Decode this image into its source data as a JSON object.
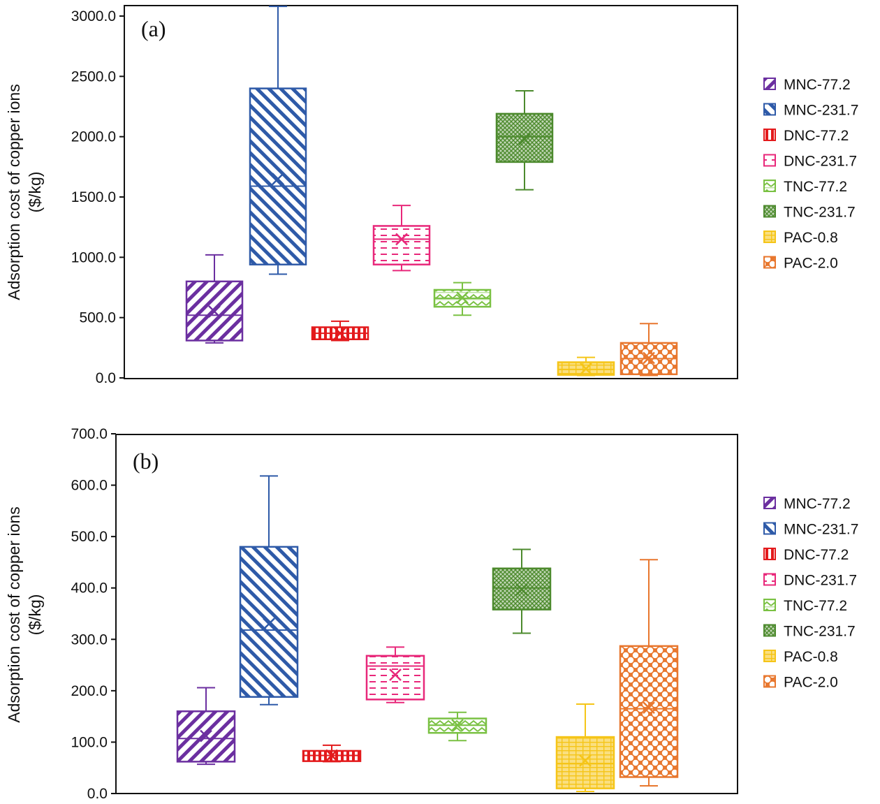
{
  "chart_data": [
    {
      "type": "box",
      "panel_label": "(a)",
      "ylabel_line1": "Adsorption cost of copper ions",
      "ylabel_line2": "($/kg)",
      "ylim": [
        0,
        3000
      ],
      "ytick_values": [
        0,
        500,
        1000,
        1500,
        2000,
        2500,
        3000
      ],
      "ytick_labels": [
        "0.0",
        "500.0",
        "1000.0",
        "1500.0",
        "2000.0",
        "2500.0",
        "3000.0"
      ],
      "legend_position": "right",
      "series": [
        {
          "name": "MNC-77.2",
          "color": "#6b2fa0",
          "pattern": "diag-right",
          "min": 290,
          "q1": 310,
          "median": 520,
          "q3": 800,
          "max": 1020,
          "mean": 550
        },
        {
          "name": "MNC-231.7",
          "color": "#2e5aa8",
          "pattern": "diag-left",
          "min": 860,
          "q1": 940,
          "median": 1590,
          "q3": 2400,
          "max": 3080,
          "mean": 1650
        },
        {
          "name": "DNC-77.2",
          "color": "#e31a1c",
          "pattern": "vertical",
          "min": 310,
          "q1": 320,
          "median": 370,
          "q3": 420,
          "max": 470,
          "mean": 370
        },
        {
          "name": "DNC-231.7",
          "color": "#e8287a",
          "pattern": "dash",
          "min": 890,
          "q1": 940,
          "median": 1150,
          "q3": 1260,
          "max": 1430,
          "mean": 1150
        },
        {
          "name": "TNC-77.2",
          "color": "#7ac143",
          "pattern": "zigzag",
          "min": 520,
          "q1": 590,
          "median": 660,
          "q3": 730,
          "max": 790,
          "mean": 665
        },
        {
          "name": "TNC-231.7",
          "color": "#4c8a2d",
          "pattern": "cross",
          "min": 1560,
          "q1": 1790,
          "median": 2000,
          "q3": 2190,
          "max": 2380,
          "mean": 1980
        },
        {
          "name": "PAC-0.8",
          "color": "#f5c518",
          "pattern": "brick",
          "min": 20,
          "q1": 25,
          "median": 70,
          "q3": 130,
          "max": 170,
          "mean": 75
        },
        {
          "name": "PAC-2.0",
          "color": "#e8772e",
          "pattern": "dots",
          "min": 20,
          "q1": 30,
          "median": 160,
          "q3": 290,
          "max": 450,
          "mean": 165
        }
      ]
    },
    {
      "type": "box",
      "panel_label": "(b)",
      "ylabel_line1": "Adsorption cost of copper ions",
      "ylabel_line2": "($/kg)",
      "ylim": [
        0,
        700
      ],
      "ytick_values": [
        0,
        100,
        200,
        300,
        400,
        500,
        600,
        700
      ],
      "ytick_labels": [
        "0.0",
        "100.0",
        "200.0",
        "300.0",
        "400.0",
        "500.0",
        "600.0",
        "700.0"
      ],
      "legend_position": "right",
      "series": [
        {
          "name": "MNC-77.2",
          "color": "#6b2fa0",
          "pattern": "diag-right",
          "min": 57,
          "q1": 62,
          "median": 107,
          "q3": 160,
          "max": 206,
          "mean": 112
        },
        {
          "name": "MNC-231.7",
          "color": "#2e5aa8",
          "pattern": "diag-left",
          "min": 173,
          "q1": 188,
          "median": 318,
          "q3": 480,
          "max": 618,
          "mean": 330
        },
        {
          "name": "DNC-77.2",
          "color": "#e31a1c",
          "pattern": "vertical",
          "min": 62,
          "q1": 63,
          "median": 74,
          "q3": 83,
          "max": 94,
          "mean": 74
        },
        {
          "name": "DNC-231.7",
          "color": "#e8287a",
          "pattern": "dash",
          "min": 177,
          "q1": 183,
          "median": 248,
          "q3": 268,
          "max": 285,
          "mean": 231
        },
        {
          "name": "TNC-77.2",
          "color": "#7ac143",
          "pattern": "zigzag",
          "min": 103,
          "q1": 118,
          "median": 133,
          "q3": 146,
          "max": 158,
          "mean": 133
        },
        {
          "name": "TNC-231.7",
          "color": "#4c8a2d",
          "pattern": "cross",
          "min": 312,
          "q1": 358,
          "median": 400,
          "q3": 438,
          "max": 475,
          "mean": 397
        },
        {
          "name": "PAC-0.8",
          "color": "#f5c518",
          "pattern": "brick",
          "min": 4,
          "q1": 10,
          "median": 58,
          "q3": 110,
          "max": 174,
          "mean": 64
        },
        {
          "name": "PAC-2.0",
          "color": "#e8772e",
          "pattern": "dots",
          "min": 15,
          "q1": 32,
          "median": 165,
          "q3": 287,
          "max": 455,
          "mean": 167
        }
      ]
    }
  ]
}
